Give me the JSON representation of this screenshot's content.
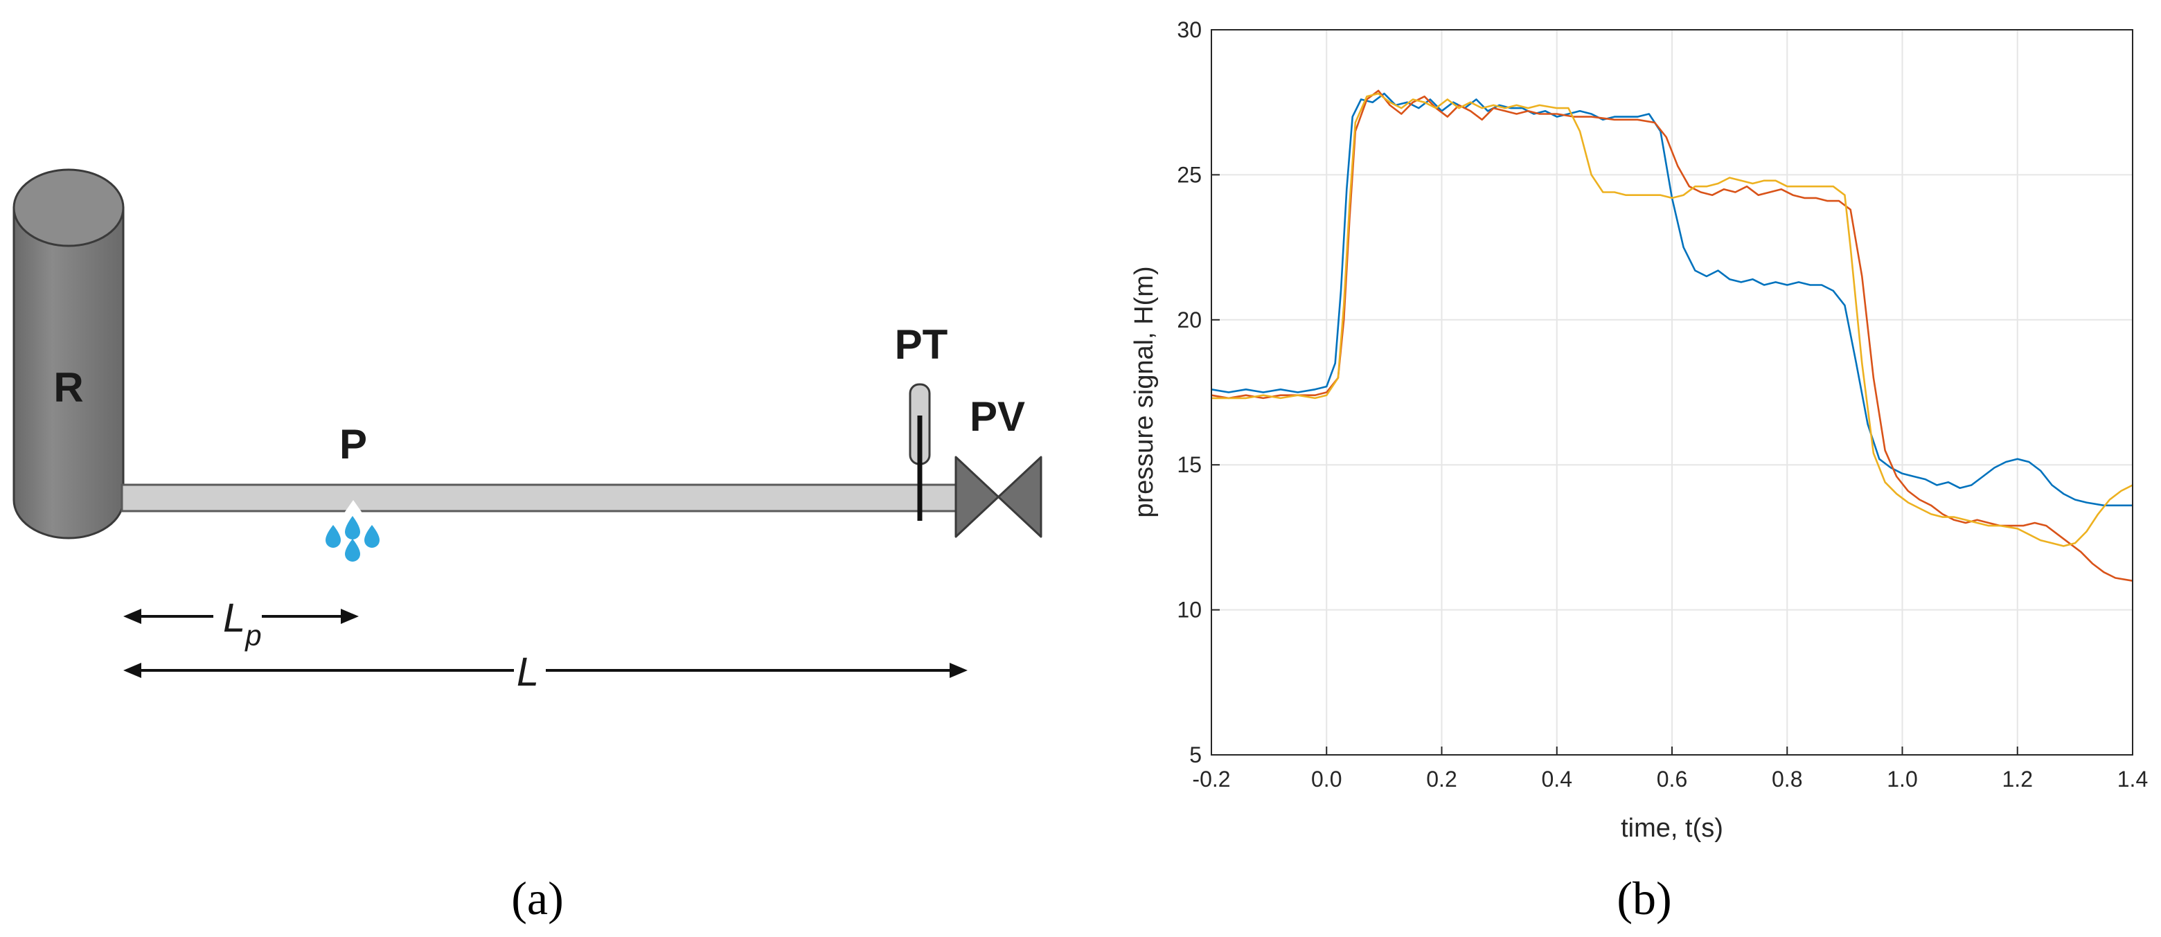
{
  "panel_a": {
    "caption": "(a)",
    "reservoir_label": "R",
    "leak_label": "P",
    "transducer_label": "PT",
    "valve_label": "PV",
    "leak_distance_label": "L",
    "leak_distance_subscript": "p",
    "pipe_length_label": "L",
    "colors": {
      "reservoir": "#7a7a7a",
      "pipe": "#cfcfcf",
      "valve": "#6e6e6e",
      "leak": "#2ea6de"
    }
  },
  "panel_b": {
    "caption": "(b)",
    "chart_data": {
      "type": "line",
      "xlabel": "time, t(s)",
      "ylabel": "pressure signal, H(m)",
      "xlim": [
        -0.2,
        1.4
      ],
      "ylim": [
        5,
        30
      ],
      "xticks": [
        "-0.2",
        "0.0",
        "0.2",
        "0.4",
        "0.6",
        "0.8",
        "1.0",
        "1.2",
        "1.4"
      ],
      "yticks": [
        "5",
        "10",
        "15",
        "20",
        "25",
        "30"
      ],
      "grid": true,
      "series": [
        {
          "color": "#0072BD",
          "points": [
            [
              -0.2,
              17.6
            ],
            [
              -0.17,
              17.5
            ],
            [
              -0.14,
              17.6
            ],
            [
              -0.11,
              17.5
            ],
            [
              -0.08,
              17.6
            ],
            [
              -0.05,
              17.5
            ],
            [
              -0.02,
              17.6
            ],
            [
              0.0,
              17.7
            ],
            [
              0.015,
              18.5
            ],
            [
              0.025,
              21.0
            ],
            [
              0.035,
              24.5
            ],
            [
              0.045,
              27.0
            ],
            [
              0.06,
              27.6
            ],
            [
              0.08,
              27.5
            ],
            [
              0.1,
              27.8
            ],
            [
              0.12,
              27.4
            ],
            [
              0.14,
              27.5
            ],
            [
              0.16,
              27.3
            ],
            [
              0.18,
              27.6
            ],
            [
              0.2,
              27.2
            ],
            [
              0.22,
              27.5
            ],
            [
              0.24,
              27.3
            ],
            [
              0.26,
              27.6
            ],
            [
              0.28,
              27.2
            ],
            [
              0.3,
              27.4
            ],
            [
              0.32,
              27.3
            ],
            [
              0.34,
              27.3
            ],
            [
              0.36,
              27.1
            ],
            [
              0.38,
              27.2
            ],
            [
              0.4,
              27.0
            ],
            [
              0.42,
              27.1
            ],
            [
              0.44,
              27.2
            ],
            [
              0.46,
              27.1
            ],
            [
              0.48,
              26.9
            ],
            [
              0.5,
              27.0
            ],
            [
              0.52,
              27.0
            ],
            [
              0.54,
              27.0
            ],
            [
              0.56,
              27.1
            ],
            [
              0.58,
              26.5
            ],
            [
              0.6,
              24.2
            ],
            [
              0.62,
              22.5
            ],
            [
              0.64,
              21.7
            ],
            [
              0.66,
              21.5
            ],
            [
              0.68,
              21.7
            ],
            [
              0.7,
              21.4
            ],
            [
              0.72,
              21.3
            ],
            [
              0.74,
              21.4
            ],
            [
              0.76,
              21.2
            ],
            [
              0.78,
              21.3
            ],
            [
              0.8,
              21.2
            ],
            [
              0.82,
              21.3
            ],
            [
              0.84,
              21.2
            ],
            [
              0.86,
              21.2
            ],
            [
              0.88,
              21.0
            ],
            [
              0.9,
              20.5
            ],
            [
              0.92,
              18.5
            ],
            [
              0.94,
              16.4
            ],
            [
              0.96,
              15.2
            ],
            [
              0.98,
              14.9
            ],
            [
              1.0,
              14.7
            ],
            [
              1.02,
              14.6
            ],
            [
              1.04,
              14.5
            ],
            [
              1.06,
              14.3
            ],
            [
              1.08,
              14.4
            ],
            [
              1.1,
              14.2
            ],
            [
              1.12,
              14.3
            ],
            [
              1.14,
              14.6
            ],
            [
              1.16,
              14.9
            ],
            [
              1.18,
              15.1
            ],
            [
              1.2,
              15.2
            ],
            [
              1.22,
              15.1
            ],
            [
              1.24,
              14.8
            ],
            [
              1.26,
              14.3
            ],
            [
              1.28,
              14.0
            ],
            [
              1.3,
              13.8
            ],
            [
              1.32,
              13.7
            ],
            [
              1.35,
              13.6
            ],
            [
              1.4,
              13.6
            ]
          ]
        },
        {
          "color": "#D95319",
          "points": [
            [
              -0.2,
              17.4
            ],
            [
              -0.17,
              17.3
            ],
            [
              -0.14,
              17.4
            ],
            [
              -0.11,
              17.3
            ],
            [
              -0.08,
              17.4
            ],
            [
              -0.05,
              17.4
            ],
            [
              -0.02,
              17.4
            ],
            [
              0.0,
              17.5
            ],
            [
              0.02,
              18.0
            ],
            [
              0.03,
              20.0
            ],
            [
              0.04,
              23.5
            ],
            [
              0.05,
              26.5
            ],
            [
              0.07,
              27.6
            ],
            [
              0.09,
              27.9
            ],
            [
              0.11,
              27.4
            ],
            [
              0.13,
              27.1
            ],
            [
              0.15,
              27.5
            ],
            [
              0.17,
              27.7
            ],
            [
              0.19,
              27.3
            ],
            [
              0.21,
              27.0
            ],
            [
              0.23,
              27.4
            ],
            [
              0.25,
              27.2
            ],
            [
              0.27,
              26.9
            ],
            [
              0.29,
              27.3
            ],
            [
              0.31,
              27.2
            ],
            [
              0.33,
              27.1
            ],
            [
              0.35,
              27.2
            ],
            [
              0.37,
              27.1
            ],
            [
              0.4,
              27.1
            ],
            [
              0.43,
              27.0
            ],
            [
              0.46,
              27.0
            ],
            [
              0.5,
              26.9
            ],
            [
              0.54,
              26.9
            ],
            [
              0.57,
              26.8
            ],
            [
              0.59,
              26.3
            ],
            [
              0.61,
              25.3
            ],
            [
              0.63,
              24.6
            ],
            [
              0.65,
              24.4
            ],
            [
              0.67,
              24.3
            ],
            [
              0.69,
              24.5
            ],
            [
              0.71,
              24.4
            ],
            [
              0.73,
              24.6
            ],
            [
              0.75,
              24.3
            ],
            [
              0.77,
              24.4
            ],
            [
              0.79,
              24.5
            ],
            [
              0.81,
              24.3
            ],
            [
              0.83,
              24.2
            ],
            [
              0.85,
              24.2
            ],
            [
              0.87,
              24.1
            ],
            [
              0.89,
              24.1
            ],
            [
              0.91,
              23.8
            ],
            [
              0.93,
              21.5
            ],
            [
              0.95,
              18.0
            ],
            [
              0.97,
              15.5
            ],
            [
              0.99,
              14.6
            ],
            [
              1.01,
              14.1
            ],
            [
              1.03,
              13.8
            ],
            [
              1.05,
              13.6
            ],
            [
              1.07,
              13.3
            ],
            [
              1.09,
              13.1
            ],
            [
              1.11,
              13.0
            ],
            [
              1.13,
              13.1
            ],
            [
              1.15,
              13.0
            ],
            [
              1.17,
              12.9
            ],
            [
              1.19,
              12.9
            ],
            [
              1.21,
              12.9
            ],
            [
              1.23,
              13.0
            ],
            [
              1.25,
              12.9
            ],
            [
              1.27,
              12.6
            ],
            [
              1.29,
              12.3
            ],
            [
              1.31,
              12.0
            ],
            [
              1.33,
              11.6
            ],
            [
              1.35,
              11.3
            ],
            [
              1.37,
              11.1
            ],
            [
              1.4,
              11.0
            ]
          ]
        },
        {
          "color": "#EDB120",
          "points": [
            [
              -0.2,
              17.3
            ],
            [
              -0.17,
              17.3
            ],
            [
              -0.14,
              17.3
            ],
            [
              -0.11,
              17.4
            ],
            [
              -0.08,
              17.3
            ],
            [
              -0.05,
              17.4
            ],
            [
              -0.02,
              17.3
            ],
            [
              0.0,
              17.4
            ],
            [
              0.02,
              18.0
            ],
            [
              0.03,
              20.5
            ],
            [
              0.04,
              24.0
            ],
            [
              0.05,
              26.8
            ],
            [
              0.07,
              27.7
            ],
            [
              0.09,
              27.8
            ],
            [
              0.11,
              27.5
            ],
            [
              0.13,
              27.3
            ],
            [
              0.15,
              27.6
            ],
            [
              0.17,
              27.5
            ],
            [
              0.19,
              27.3
            ],
            [
              0.21,
              27.6
            ],
            [
              0.23,
              27.3
            ],
            [
              0.25,
              27.5
            ],
            [
              0.27,
              27.3
            ],
            [
              0.29,
              27.4
            ],
            [
              0.31,
              27.3
            ],
            [
              0.33,
              27.4
            ],
            [
              0.35,
              27.3
            ],
            [
              0.37,
              27.4
            ],
            [
              0.4,
              27.3
            ],
            [
              0.42,
              27.3
            ],
            [
              0.44,
              26.5
            ],
            [
              0.46,
              25.0
            ],
            [
              0.48,
              24.4
            ],
            [
              0.5,
              24.4
            ],
            [
              0.52,
              24.3
            ],
            [
              0.55,
              24.3
            ],
            [
              0.58,
              24.3
            ],
            [
              0.6,
              24.2
            ],
            [
              0.62,
              24.3
            ],
            [
              0.64,
              24.6
            ],
            [
              0.66,
              24.6
            ],
            [
              0.68,
              24.7
            ],
            [
              0.7,
              24.9
            ],
            [
              0.72,
              24.8
            ],
            [
              0.74,
              24.7
            ],
            [
              0.76,
              24.8
            ],
            [
              0.78,
              24.8
            ],
            [
              0.8,
              24.6
            ],
            [
              0.82,
              24.6
            ],
            [
              0.84,
              24.6
            ],
            [
              0.86,
              24.6
            ],
            [
              0.88,
              24.6
            ],
            [
              0.9,
              24.3
            ],
            [
              0.91,
              22.5
            ],
            [
              0.93,
              18.5
            ],
            [
              0.95,
              15.4
            ],
            [
              0.97,
              14.4
            ],
            [
              0.99,
              14.0
            ],
            [
              1.01,
              13.7
            ],
            [
              1.03,
              13.5
            ],
            [
              1.05,
              13.3
            ],
            [
              1.07,
              13.2
            ],
            [
              1.09,
              13.2
            ],
            [
              1.11,
              13.1
            ],
            [
              1.13,
              13.0
            ],
            [
              1.15,
              12.9
            ],
            [
              1.17,
              12.9
            ],
            [
              1.2,
              12.8
            ],
            [
              1.22,
              12.6
            ],
            [
              1.24,
              12.4
            ],
            [
              1.26,
              12.3
            ],
            [
              1.28,
              12.2
            ],
            [
              1.3,
              12.3
            ],
            [
              1.32,
              12.7
            ],
            [
              1.34,
              13.3
            ],
            [
              1.36,
              13.8
            ],
            [
              1.38,
              14.1
            ],
            [
              1.4,
              14.3
            ]
          ]
        }
      ]
    }
  }
}
